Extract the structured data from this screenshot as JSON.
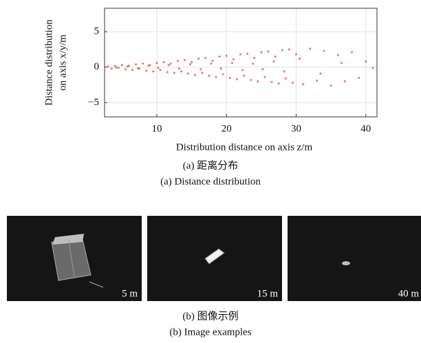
{
  "chart_data": {
    "type": "scatter",
    "xlabel": "Distribution distance on axis z/m",
    "ylabel": [
      "Distance distribution",
      "on axis x/y/m"
    ],
    "color": "#e0606a",
    "xlim": [
      2.5,
      41.6
    ],
    "ylim": [
      -7,
      8.3
    ],
    "xticks": [
      10,
      20,
      30,
      40
    ],
    "yticks": [
      {
        "value": -5,
        "label": "−5"
      },
      0,
      5
    ],
    "grid": true,
    "x": [
      3,
      3.5,
      4,
      4.5,
      5,
      5.5,
      6,
      6.5,
      7,
      7.5,
      8,
      8.5,
      9,
      9.5,
      10,
      10.5,
      11,
      11.5,
      12,
      12.5,
      13,
      13.5,
      14,
      14.5,
      15,
      15.5,
      16,
      16.5,
      17,
      17.5,
      18,
      18.5,
      19,
      19.5,
      20,
      20.5,
      21,
      21.5,
      22,
      22.5,
      23,
      23.5,
      24,
      24.5,
      25,
      25.5,
      26,
      26.5,
      27,
      27.5,
      28,
      28.5,
      29,
      29.5,
      30,
      31,
      32,
      33,
      34,
      35,
      36,
      37,
      38,
      39,
      40,
      41,
      4.2,
      5.8,
      7.3,
      8.8,
      10.2,
      11.7,
      13.2,
      14.8,
      16.3,
      17.8,
      19.2,
      20.8,
      22.3,
      23.8,
      25.2,
      26.8,
      28.3,
      30.5,
      33.5,
      36.5
    ],
    "values": [
      0.1,
      -0.2,
      0.15,
      -0.1,
      0.3,
      -0.3,
      0.2,
      -0.4,
      0.4,
      -0.2,
      0.5,
      -0.5,
      0.3,
      -0.6,
      0.6,
      -0.4,
      0.7,
      -0.7,
      0.5,
      -0.8,
      0.9,
      -0.6,
      1.0,
      -0.9,
      0.7,
      -1.1,
      1.2,
      -0.8,
      1.3,
      -1.2,
      0.9,
      -1.4,
      1.5,
      -1.0,
      1.6,
      -1.5,
      1.1,
      -1.7,
      1.8,
      -1.2,
      1.9,
      -1.8,
      1.3,
      -2.0,
      2.1,
      -1.4,
      2.2,
      -2.1,
      1.5,
      -2.3,
      2.4,
      -1.6,
      2.5,
      -2.2,
      1.8,
      -2.4,
      2.6,
      -1.9,
      2.3,
      -2.6,
      1.7,
      -2.0,
      2.1,
      -1.5,
      0.8,
      -0.1,
      -0.05,
      0.1,
      -0.15,
      0.2,
      -0.1,
      0.3,
      -0.2,
      0.4,
      -0.3,
      0.5,
      -0.2,
      0.6,
      -0.4,
      0.5,
      -0.3,
      0.8,
      -0.6,
      1.2,
      -0.9,
      0.6
    ]
  },
  "figure": {
    "caption_a_cn": "(a) 距离分布",
    "caption_a_en": "(a) Distance distribution",
    "images": [
      {
        "label": "5 m"
      },
      {
        "label": "15 m"
      },
      {
        "label": "40 m"
      }
    ],
    "caption_b_cn": "(b) 图像示例",
    "caption_b_en": "(b) Image examples"
  }
}
